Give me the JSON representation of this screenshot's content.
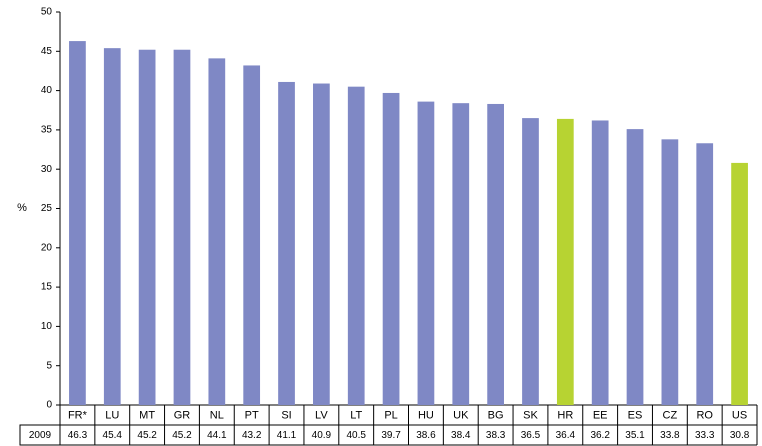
{
  "chart_data": {
    "type": "bar",
    "y_label": "%",
    "row_label": "2009",
    "categories": [
      "FR*",
      "LU",
      "MT",
      "GR",
      "NL",
      "PT",
      "SI",
      "LV",
      "LT",
      "PL",
      "HU",
      "UK",
      "BG",
      "SK",
      "HR",
      "EE",
      "ES",
      "CZ",
      "RO",
      "US"
    ],
    "values": [
      46.3,
      45.4,
      45.2,
      45.2,
      44.1,
      43.2,
      41.1,
      40.9,
      40.5,
      39.7,
      38.6,
      38.4,
      38.3,
      36.5,
      36.4,
      36.2,
      35.1,
      33.8,
      33.3,
      30.8
    ],
    "colors": [
      "#7f88c5",
      "#7f88c5",
      "#7f88c5",
      "#7f88c5",
      "#7f88c5",
      "#7f88c5",
      "#7f88c5",
      "#7f88c5",
      "#7f88c5",
      "#7f88c5",
      "#7f88c5",
      "#7f88c5",
      "#7f88c5",
      "#7f88c5",
      "#b7d332",
      "#7f88c5",
      "#7f88c5",
      "#7f88c5",
      "#7f88c5",
      "#b7d332"
    ],
    "ylim": [
      0,
      50
    ],
    "yticks": [
      0,
      5,
      10,
      15,
      20,
      25,
      30,
      35,
      40,
      45,
      50
    ],
    "grid": false
  }
}
